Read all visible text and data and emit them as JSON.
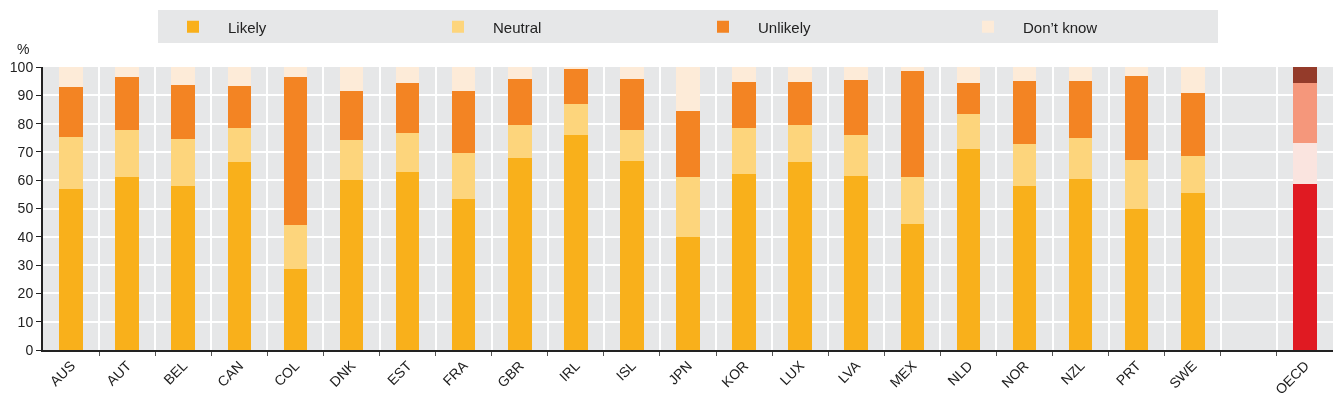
{
  "chart_data": {
    "type": "bar",
    "stacked": true,
    "ylabel": "%",
    "categories": [
      "AUS",
      "AUT",
      "BEL",
      "CAN",
      "COL",
      "DNK",
      "EST",
      "FRA",
      "GBR",
      "IRL",
      "ISL",
      "JPN",
      "KOR",
      "LUX",
      "LVA",
      "MEX",
      "NLD",
      "NOR",
      "NZL",
      "PRT",
      "SWE",
      null,
      "OECD"
    ],
    "series": [
      {
        "name": "Likely",
        "color": "#f9b01b",
        "colors": [
          null,
          null,
          null,
          null,
          null,
          null,
          null,
          null,
          null,
          null,
          null,
          null,
          null,
          null,
          null,
          null,
          null,
          null,
          null,
          null,
          null,
          null,
          "#e01a22"
        ],
        "values": [
          56.8,
          61.1,
          58.1,
          66.4,
          28.7,
          60.1,
          62.8,
          53.2,
          67.7,
          76.0,
          66.7,
          39.8,
          62.1,
          66.4,
          61.5,
          44.6,
          71.0,
          58.1,
          60.5,
          49.9,
          55.5,
          null,
          58.5
        ]
      },
      {
        "name": "Neutral",
        "color": "#fdd57c",
        "colors": [
          null,
          null,
          null,
          null,
          null,
          null,
          null,
          null,
          null,
          null,
          null,
          null,
          null,
          null,
          null,
          null,
          null,
          null,
          null,
          null,
          null,
          null,
          "#fae4df"
        ],
        "values": [
          18.5,
          16.5,
          16.6,
          12.2,
          15.6,
          14.2,
          13.9,
          16.5,
          11.9,
          10.9,
          10.9,
          21.3,
          16.5,
          13.2,
          14.5,
          16.5,
          12.3,
          14.6,
          14.5,
          17.2,
          13.2,
          null,
          14.8
        ]
      },
      {
        "name": "Unlikely",
        "color": "#f38423",
        "colors": [
          null,
          null,
          null,
          null,
          null,
          null,
          null,
          null,
          null,
          null,
          null,
          null,
          null,
          null,
          null,
          null,
          null,
          null,
          null,
          null,
          null,
          null,
          "#f5977b"
        ],
        "values": [
          17.5,
          18.9,
          19.1,
          14.6,
          52.2,
          17.2,
          17.5,
          21.8,
          16.2,
          12.5,
          18.2,
          23.2,
          16.2,
          15.2,
          19.5,
          37.4,
          11.2,
          22.5,
          20.2,
          29.7,
          22.2,
          null,
          21.2
        ]
      },
      {
        "name": "Don’t know",
        "color": "#fdebd8",
        "colors": [
          null,
          null,
          null,
          null,
          null,
          null,
          null,
          null,
          null,
          null,
          null,
          null,
          null,
          null,
          null,
          null,
          null,
          null,
          null,
          null,
          null,
          null,
          "#943b2a"
        ],
        "values": [
          7.2,
          3.5,
          6.2,
          6.8,
          3.5,
          8.5,
          5.8,
          8.5,
          4.2,
          0.6,
          4.2,
          15.7,
          5.2,
          5.2,
          4.5,
          1.5,
          5.5,
          4.8,
          4.8,
          3.2,
          9.1,
          null,
          5.5
        ]
      }
    ],
    "ylim": [
      0,
      100
    ],
    "yticks": [
      0,
      10,
      20,
      30,
      40,
      50,
      60,
      70,
      80,
      90,
      100
    ],
    "grid": true,
    "legend": "top"
  }
}
